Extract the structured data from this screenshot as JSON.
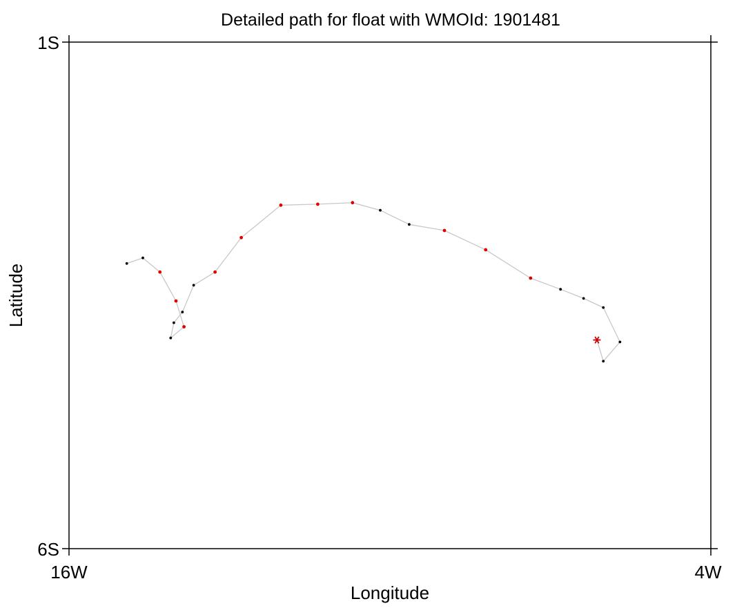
{
  "chart_data": {
    "type": "scatter",
    "title": "Detailed path for float with WMOId: 1901481",
    "xlabel": "Longitude",
    "ylabel": "Latitude",
    "xlim": [
      -16,
      -4
    ],
    "ylim": [
      -6,
      -1
    ],
    "x_tick_labels": [
      "16W",
      "4W"
    ],
    "y_tick_labels": [
      "1S",
      "6S"
    ],
    "grid": false,
    "colors": {
      "path": "#c8c8c8",
      "black_point": "#000000",
      "red_point": "#e00000",
      "latest_marker": "#cc0000"
    },
    "points": [
      {
        "lon": -14.92,
        "lat": -3.185,
        "color": "black"
      },
      {
        "lon": -14.62,
        "lat": -3.13,
        "color": "black"
      },
      {
        "lon": -14.3,
        "lat": -3.27,
        "color": "red"
      },
      {
        "lon": -14.0,
        "lat": -3.555,
        "color": "red"
      },
      {
        "lon": -13.85,
        "lat": -3.81,
        "color": "red"
      },
      {
        "lon": -14.1,
        "lat": -3.92,
        "color": "black"
      },
      {
        "lon": -14.04,
        "lat": -3.77,
        "color": "black"
      },
      {
        "lon": -13.88,
        "lat": -3.665,
        "color": "black"
      },
      {
        "lon": -13.67,
        "lat": -3.4,
        "color": "black"
      },
      {
        "lon": -13.27,
        "lat": -3.27,
        "color": "red"
      },
      {
        "lon": -12.78,
        "lat": -2.93,
        "color": "red"
      },
      {
        "lon": -12.04,
        "lat": -2.61,
        "color": "red"
      },
      {
        "lon": -11.35,
        "lat": -2.6,
        "color": "red"
      },
      {
        "lon": -10.7,
        "lat": -2.585,
        "color": "red"
      },
      {
        "lon": -10.18,
        "lat": -2.66,
        "color": "black"
      },
      {
        "lon": -9.64,
        "lat": -2.8,
        "color": "black"
      },
      {
        "lon": -8.98,
        "lat": -2.86,
        "color": "red"
      },
      {
        "lon": -8.21,
        "lat": -3.05,
        "color": "red"
      },
      {
        "lon": -7.37,
        "lat": -3.33,
        "color": "red"
      },
      {
        "lon": -6.81,
        "lat": -3.44,
        "color": "black"
      },
      {
        "lon": -6.38,
        "lat": -3.53,
        "color": "black"
      },
      {
        "lon": -6.01,
        "lat": -3.62,
        "color": "black"
      },
      {
        "lon": -5.7,
        "lat": -3.96,
        "color": "black"
      },
      {
        "lon": -6.01,
        "lat": -4.15,
        "color": "black"
      },
      {
        "lon": -6.13,
        "lat": -3.94,
        "color": "latest"
      }
    ]
  }
}
